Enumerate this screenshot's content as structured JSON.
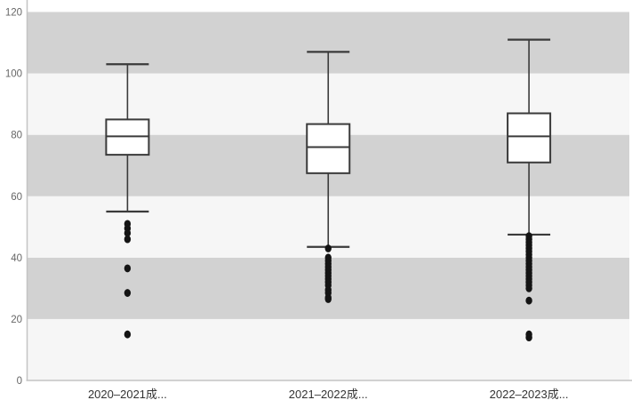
{
  "chart_data": {
    "type": "box",
    "title": "",
    "xlabel": "",
    "ylabel": "",
    "categories": [
      "2020–2021成...",
      "2021–2022成...",
      "2022–2023成..."
    ],
    "ylim": [
      0,
      120
    ],
    "yticks": [
      0,
      20,
      40,
      60,
      80,
      100,
      120
    ],
    "legend_position": "none",
    "grid": "alternating horizontal bands, no gridlines",
    "series": [
      {
        "category": "2020–2021成...",
        "whisker_high": 103,
        "q3": 85,
        "median": 79.5,
        "q1": 73.5,
        "whisker_low": 55,
        "outliers": [
          51,
          49.5,
          48,
          46,
          36.5,
          28.5,
          15
        ]
      },
      {
        "category": "2021–2022成...",
        "whisker_high": 107,
        "q3": 83.5,
        "median": 76,
        "q1": 67.5,
        "whisker_low": 43.5,
        "outliers": [
          43,
          40,
          39,
          38,
          37,
          36,
          35,
          34,
          33,
          32,
          31,
          29.5,
          28.5,
          27,
          26.5
        ]
      },
      {
        "category": "2022–2023成...",
        "whisker_high": 111,
        "q3": 87,
        "median": 79.5,
        "q1": 71,
        "whisker_low": 47.5,
        "outliers": [
          47,
          46,
          45,
          44,
          43,
          42,
          41,
          40,
          39,
          38,
          37,
          36,
          35,
          34,
          33,
          32,
          31,
          30,
          26,
          15,
          14
        ]
      }
    ],
    "colors": {
      "background": "#ffffff",
      "band_light": "#f6f6f6",
      "band_dark": "#d2d2d2",
      "box_fill": "#ffffff",
      "box_stroke": "#3a3a3a",
      "whisker_stroke": "#3a3a3a",
      "outlier_fill": "#141414",
      "axis_line": "#c4c4c4",
      "y_tick_label": "#666666",
      "x_category_label": "#333333"
    }
  }
}
